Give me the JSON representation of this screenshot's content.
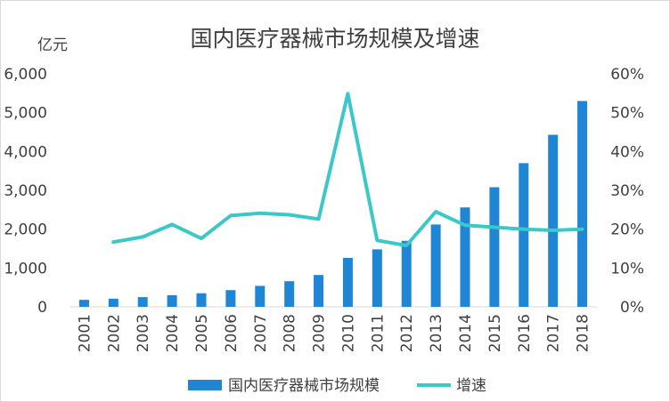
{
  "chart_data": {
    "type": "bar",
    "title": "国内医疗器械市场规模及增速",
    "ylabel_left": "亿元",
    "categories": [
      "2001",
      "2002",
      "2003",
      "2004",
      "2005",
      "2006",
      "2007",
      "2008",
      "2009",
      "2010",
      "2011",
      "2012",
      "2013",
      "2014",
      "2015",
      "2016",
      "2017",
      "2018"
    ],
    "series": [
      {
        "name": "国内医疗器械市场规模",
        "type": "bar",
        "axis": "left",
        "color": "#1f86d6",
        "values": [
          180,
          210,
          250,
          300,
          350,
          430,
          540,
          660,
          820,
          1260,
          1480,
          1700,
          2120,
          2560,
          3080,
          3700,
          4430,
          5300
        ]
      },
      {
        "name": "增速",
        "type": "line",
        "axis": "right",
        "color": "#3cc8c8",
        "values": [
          null,
          16.7,
          18.0,
          21.2,
          17.6,
          23.5,
          24.1,
          23.7,
          22.6,
          54.9,
          17.1,
          15.8,
          24.5,
          21.0,
          20.5,
          20.0,
          19.7,
          20.0
        ]
      }
    ],
    "y_left": {
      "ylim": [
        0,
        6000
      ],
      "ticks": [
        "0",
        "1,000",
        "2,000",
        "3,000",
        "4,000",
        "5,000",
        "6,000"
      ]
    },
    "y_right": {
      "ylim": [
        0,
        60
      ],
      "ticks": [
        "0%",
        "10%",
        "20%",
        "30%",
        "40%",
        "50%",
        "60%"
      ]
    },
    "grid": false,
    "legend": {
      "position": "bottom",
      "items": [
        "国内医疗器械市场规模",
        "增速"
      ]
    }
  }
}
